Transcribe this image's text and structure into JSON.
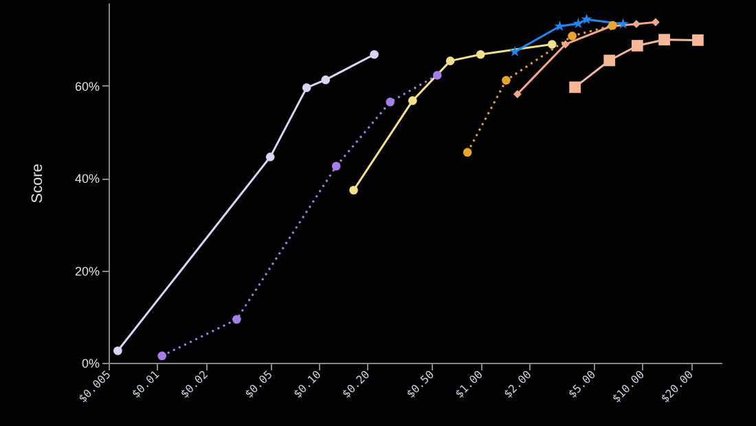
{
  "chart_data": {
    "type": "line",
    "ylabel": "Score",
    "log": "x",
    "grid": false,
    "xlim": [
      0.005,
      31
    ],
    "ylim": [
      0,
      78
    ],
    "xticks": [
      {
        "value": 0.005,
        "label": "$0.005"
      },
      {
        "value": 0.01,
        "label": "$0.01"
      },
      {
        "value": 0.02,
        "label": "$0.02"
      },
      {
        "value": 0.05,
        "label": "$0.05"
      },
      {
        "value": 0.1,
        "label": "$0.10"
      },
      {
        "value": 0.2,
        "label": "$0.20"
      },
      {
        "value": 0.5,
        "label": "$0.50"
      },
      {
        "value": 1,
        "label": "$1.00"
      },
      {
        "value": 2,
        "label": "$2.00"
      },
      {
        "value": 5,
        "label": "$5.00"
      },
      {
        "value": 10,
        "label": "$10.00"
      },
      {
        "value": 20,
        "label": "$20.00"
      }
    ],
    "yticks": [
      {
        "value": 0,
        "label": "0%"
      },
      {
        "value": 20,
        "label": "20%"
      },
      {
        "value": 40,
        "label": "40%"
      },
      {
        "value": 60,
        "label": "60%"
      }
    ],
    "series": [
      {
        "color": "#d8d4f4",
        "marker": "circle",
        "line_style": "solid",
        "x": [
          0.0057,
          0.05,
          0.084,
          0.11,
          0.22
        ],
        "values": [
          2.6,
          44.6,
          59.6,
          61.3,
          66.8
        ]
      },
      {
        "color": "#a67ee8",
        "marker": "circle",
        "line_style": "dotted",
        "x": [
          0.0107,
          0.031,
          0.128,
          0.276,
          0.54
        ],
        "values": [
          1.5,
          9.4,
          42.6,
          56.5,
          62.3
        ]
      },
      {
        "color": "#f2e08c",
        "marker": "circle",
        "line_style": "solid",
        "x": [
          0.164,
          0.38,
          0.65,
          1.0,
          2.77
        ],
        "values": [
          37.4,
          56.8,
          65.4,
          66.8,
          69
        ]
      },
      {
        "color": "#e8a52c",
        "marker": "circle",
        "line_style": "dotted",
        "x": [
          0.83,
          1.44,
          3.69,
          6.56
        ],
        "values": [
          45.6,
          61.2,
          70.8,
          73.1
        ]
      },
      {
        "color": "#1e88f0",
        "marker": "star",
        "line_style": "solid",
        "x": [
          1.63,
          3.09,
          4.02,
          4.53,
          7.62
        ],
        "values": [
          67.4,
          72.9,
          73.5,
          74.4,
          73.4
        ]
      },
      {
        "color": "#f0a888",
        "marker": "diamond",
        "line_style": "solid",
        "x": [
          1.69,
          3.35,
          6.4,
          9.2,
          12.1
        ],
        "values": [
          58.2,
          69,
          72.9,
          73.4,
          73.8
        ]
      },
      {
        "color": "#f8b898",
        "marker": "square",
        "line_style": "solid",
        "x": [
          3.84,
          6.27,
          9.33,
          13.7,
          22.1
        ],
        "values": [
          59.7,
          65.5,
          68.7,
          70,
          69.9
        ]
      }
    ]
  }
}
